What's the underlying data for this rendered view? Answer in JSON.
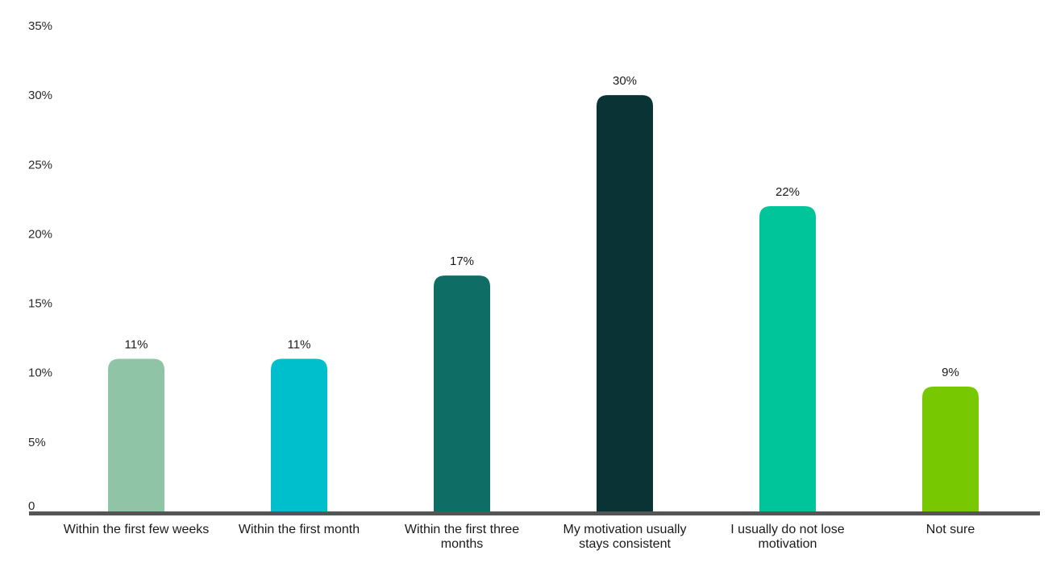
{
  "chart_data": {
    "type": "bar",
    "title": "",
    "xlabel": "",
    "ylabel": "",
    "categories": [
      "Within the first few weeks",
      "Within the first month",
      "Within the first three months",
      "My motivation usually stays consistent",
      "I usually do not lose motivation",
      "Not sure"
    ],
    "values": [
      11,
      11,
      17,
      30,
      22,
      9
    ],
    "value_labels": [
      "11%",
      "11%",
      "17%",
      "30%",
      "22%",
      "9%"
    ],
    "y_ticks": [
      0,
      5,
      10,
      15,
      20,
      25,
      30,
      35
    ],
    "y_tick_labels": [
      "0",
      "5%",
      "10%",
      "15%",
      "20%",
      "25%",
      "30%",
      "35%"
    ],
    "ylim": [
      0,
      35
    ],
    "grid": false,
    "legend": "none",
    "colors": [
      "#8fc4a7",
      "#00bfcc",
      "#0e6e65",
      "#093334",
      "#00c49a",
      "#77c800"
    ],
    "axis_color": "#555555"
  }
}
